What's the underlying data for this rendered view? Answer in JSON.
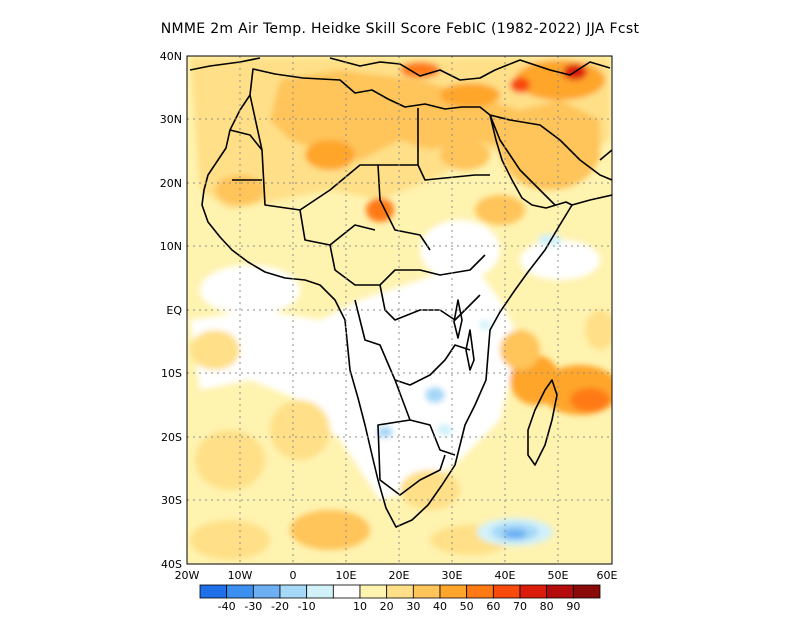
{
  "title": "NMME  2m Air Temp. Heidke Skill Score FebIC (1982-2022) JJA Fcst",
  "lat_labels": [
    "40N",
    "30N",
    "20N",
    "10N",
    "EQ",
    "10S",
    "20S",
    "30S",
    "40S"
  ],
  "lon_labels": [
    "20W",
    "10W",
    "0",
    "10E",
    "20E",
    "30E",
    "40E",
    "50E",
    "60E"
  ],
  "colorbar": {
    "labels": [
      "-40",
      "-30",
      "-20",
      "-10",
      "10",
      "20",
      "30",
      "40",
      "50",
      "60",
      "70",
      "80",
      "90"
    ],
    "colors": [
      "#1f6fe8",
      "#3a8ff0",
      "#6cb0f3",
      "#a6d8f7",
      "#d2f2fa",
      "#ffffff",
      "#fff3b0",
      "#ffe088",
      "#ffc45a",
      "#ffa52c",
      "#ff7a14",
      "#f84a0a",
      "#dc1c0a",
      "#b40c0c",
      "#8a0a0a"
    ]
  },
  "palette": {
    "land_outline": "#000000",
    "grid_dots": "#8c8c8c"
  }
}
